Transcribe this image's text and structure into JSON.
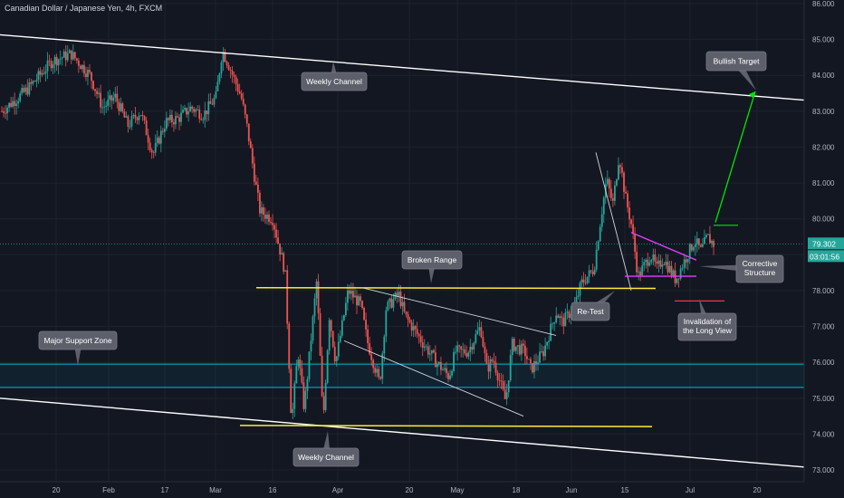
{
  "header": {
    "title": "Canadian Dollar / Japanese Yen, 4h, FXCM"
  },
  "colors": {
    "background": "#131722",
    "bull": "#26a69a",
    "bear": "#ef5350",
    "channel": "#ffffff",
    "range": "#ffeb3b",
    "zone": "#00bcd4",
    "target": "#00e600",
    "invalidation": "#f23645",
    "correction": "#e040fb",
    "callout": "#5d606b",
    "last_price": "#26a69a"
  },
  "chart_data": {
    "type": "candlestick",
    "title": "Canadian Dollar / Japanese Yen, 4h, FXCM",
    "ylim": [
      72.9,
      86.1
    ],
    "y_ticks": [
      "86.000",
      "85.000",
      "84.000",
      "83.000",
      "82.000",
      "81.000",
      "80.000",
      "79.000",
      "78.000",
      "77.000",
      "76.000",
      "75.000",
      "74.000",
      "73.000"
    ],
    "x_ticks": [
      "20",
      "Feb",
      "17",
      "Mar",
      "16",
      "Apr",
      "20",
      "May",
      "18",
      "Jun",
      "15",
      "Jul",
      "20"
    ],
    "last_price": "79.302",
    "countdown": "03:01:56",
    "price_path": [
      [
        0,
        83.0
      ],
      [
        4,
        83.6
      ],
      [
        8,
        84.4
      ],
      [
        11,
        84.6
      ],
      [
        14,
        84.0
      ],
      [
        16,
        83.1
      ],
      [
        18,
        83.4
      ],
      [
        20,
        82.6
      ],
      [
        22,
        83.0
      ],
      [
        24,
        81.8
      ],
      [
        26,
        82.7
      ],
      [
        28,
        82.8
      ],
      [
        30,
        83.1
      ],
      [
        32,
        82.9
      ],
      [
        34,
        83.4
      ],
      [
        35,
        84.7
      ],
      [
        36,
        84.3
      ],
      [
        38,
        83.4
      ],
      [
        39,
        82.5
      ],
      [
        40,
        81.3
      ],
      [
        41,
        80.2
      ],
      [
        43,
        80.0
      ],
      [
        45,
        78.5
      ],
      [
        46,
        74.3
      ],
      [
        47,
        76.3
      ],
      [
        48,
        74.7
      ],
      [
        50,
        78.3
      ],
      [
        51,
        74.3
      ],
      [
        52,
        77.3
      ],
      [
        53,
        76.0
      ],
      [
        55,
        78.0
      ],
      [
        57,
        77.6
      ],
      [
        58,
        76.6
      ],
      [
        60,
        75.4
      ],
      [
        61,
        77.5
      ],
      [
        63,
        77.9
      ],
      [
        64,
        77.3
      ],
      [
        67,
        76.5
      ],
      [
        69,
        76.0
      ],
      [
        71,
        75.6
      ],
      [
        72,
        76.3
      ],
      [
        74,
        76.3
      ],
      [
        76,
        77.0
      ],
      [
        77,
        75.8
      ],
      [
        78,
        76.1
      ],
      [
        80,
        74.9
      ],
      [
        81,
        76.5
      ],
      [
        83,
        76.3
      ],
      [
        84,
        75.8
      ],
      [
        86,
        76.3
      ],
      [
        88,
        77.4
      ],
      [
        89,
        77.1
      ],
      [
        91,
        77.6
      ],
      [
        92,
        78.2
      ],
      [
        94,
        78.6
      ],
      [
        95,
        79.9
      ],
      [
        96,
        81.1
      ],
      [
        97,
        80.4
      ],
      [
        98,
        81.8
      ],
      [
        99,
        80.6
      ],
      [
        100,
        79.8
      ],
      [
        101,
        78.4
      ],
      [
        103,
        79.0
      ],
      [
        104,
        78.6
      ],
      [
        105,
        78.9
      ],
      [
        107,
        78.3
      ],
      [
        108,
        78.7
      ],
      [
        110,
        79.4
      ],
      [
        111,
        79.1
      ],
      [
        112,
        79.5
      ],
      [
        113,
        79.3
      ]
    ]
  },
  "annotations": {
    "callouts": [
      {
        "key": "weekly_top",
        "text": "Weekly Channel"
      },
      {
        "key": "bullish",
        "text": "Bullish Target"
      },
      {
        "key": "broken",
        "text": "Broken Range"
      },
      {
        "key": "support",
        "text": "Major Support Zone"
      },
      {
        "key": "retest",
        "text": "Re-Test"
      },
      {
        "key": "corrective",
        "text": "Corrective Structure"
      },
      {
        "key": "invalidation",
        "text": "Invalidation of the Long View"
      },
      {
        "key": "weekly_bottom",
        "text": "Weekly Channel"
      }
    ]
  }
}
